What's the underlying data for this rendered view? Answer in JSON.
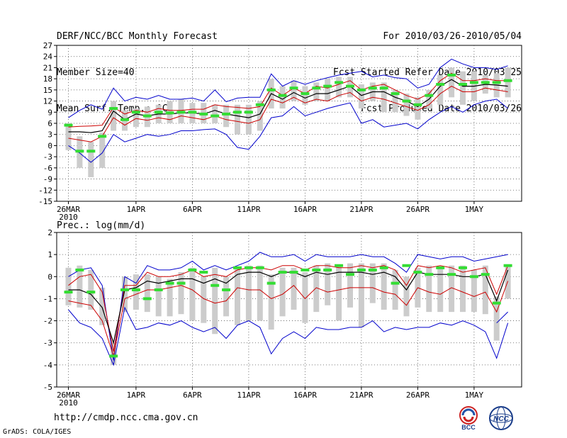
{
  "header": {
    "title": "DERF/NCC/BCC Monthly Forecast",
    "member_size": "Member Size=40",
    "variable": "Mean Surf. Temp.: °C",
    "period": "For 2010/03/26-2010/05/04",
    "refer_date": "Fcst Started Refer Date 2010/03/25",
    "produced_date": "Fcst Produced Date 2010/03/26"
  },
  "footer": {
    "url": "http://cmdp.ncc.cma.gov.cn",
    "credit": "GrADS: COLA/IGES",
    "logo_bcc": "BCC",
    "logo_ncc": "NCC"
  },
  "colors": {
    "ensemble_max_min": "#0000cc",
    "ensemble_spread": "#cc0000",
    "ensemble_mean": "#000000",
    "box": "#cccccc",
    "observed": "#33dd33"
  },
  "chart_data": [
    {
      "type": "line",
      "name": "temperature",
      "ylabel": "",
      "ylim": [
        -15,
        27
      ],
      "yticks": [
        27,
        24,
        21,
        18,
        15,
        12,
        9,
        6,
        3,
        0,
        -3,
        -6,
        -9,
        -12,
        -15
      ],
      "x_start_day": 0,
      "x_end_day": 40,
      "xtick_labels": [
        {
          "day": 0,
          "label": "26MAR",
          "sub": "2010"
        },
        {
          "day": 6,
          "label": "1APR"
        },
        {
          "day": 11,
          "label": "6APR"
        },
        {
          "day": 16,
          "label": "11APR"
        },
        {
          "day": 21,
          "label": "16APR"
        },
        {
          "day": 26,
          "label": "21APR"
        },
        {
          "day": 31,
          "label": "26APR"
        },
        {
          "day": 36,
          "label": "1MAY"
        }
      ],
      "series": [
        {
          "name": "max",
          "values": [
            7.5,
            9.5,
            11,
            9.8,
            15.5,
            12,
            13,
            12.5,
            13.5,
            12.5,
            12.5,
            12.8,
            12,
            15,
            11.8,
            12.8,
            13,
            13,
            19.3,
            16,
            17.5,
            16.5,
            17.5,
            18.3,
            19,
            19.5,
            20,
            18.5,
            19,
            18.3,
            18,
            15.5,
            16.5,
            21,
            23.3,
            22,
            21,
            21,
            20.5,
            21.5
          ]
        },
        {
          "name": "upper",
          "values": [
            5,
            5.2,
            5.3,
            5.5,
            10.3,
            8.5,
            9.5,
            9,
            10,
            9.5,
            9.5,
            9.8,
            9.8,
            11,
            10.5,
            10.3,
            10,
            10.5,
            15.5,
            13.5,
            15.5,
            14,
            16,
            15.5,
            16.5,
            17.5,
            15,
            16,
            16.5,
            15,
            13.5,
            12.5,
            14,
            17.5,
            19.5,
            17.5,
            17.5,
            18,
            17.5,
            17.5
          ]
        },
        {
          "name": "mean",
          "values": [
            3.7,
            3.7,
            3.5,
            4,
            9.3,
            7,
            8.5,
            8,
            8.5,
            8.5,
            8.8,
            8.8,
            8.5,
            9.5,
            8.5,
            8,
            7.5,
            8.5,
            14,
            12.5,
            14.3,
            12.8,
            14,
            14,
            15,
            16,
            13.5,
            14.5,
            14.5,
            13,
            12,
            10.5,
            12.5,
            16,
            17.8,
            16,
            16,
            16.5,
            16.3,
            16
          ]
        },
        {
          "name": "lower",
          "values": [
            2,
            1.5,
            1,
            2.5,
            7.5,
            5.5,
            7.3,
            6.8,
            7.5,
            7,
            8,
            7.5,
            7,
            8,
            7,
            6.5,
            6,
            7,
            12.5,
            11.5,
            13,
            11.5,
            12.5,
            12,
            13.5,
            14.3,
            12,
            13,
            12.5,
            11.5,
            10.5,
            9.5,
            11,
            14,
            16,
            14.5,
            14.5,
            15.5,
            15,
            14.5
          ]
        },
        {
          "name": "min",
          "values": [
            0,
            -2,
            -4.5,
            -2,
            3,
            1,
            2,
            3,
            2.5,
            3,
            4,
            4,
            4.3,
            4.5,
            3,
            -0.5,
            -1,
            2.5,
            7.5,
            8,
            10.5,
            8,
            9,
            10,
            10.8,
            11.5,
            6,
            7,
            5,
            5.5,
            6,
            4.5,
            7,
            9,
            10.5,
            9,
            11,
            12,
            12.5,
            10
          ]
        }
      ],
      "boxes": [
        [
          -1.2,
          6
        ],
        [
          -6,
          2.5
        ],
        [
          -8.5,
          1
        ],
        [
          -6,
          3.5
        ],
        [
          4,
          12
        ],
        [
          4,
          9.5
        ],
        [
          5,
          10
        ],
        [
          5,
          10.5
        ],
        [
          6,
          11
        ],
        [
          6,
          12
        ],
        [
          6,
          12.5
        ],
        [
          6,
          11.5
        ],
        [
          6,
          11.5
        ],
        [
          6,
          11
        ],
        [
          5,
          11
        ],
        [
          3,
          11
        ],
        [
          3,
          11
        ],
        [
          4,
          12
        ],
        [
          10,
          18
        ],
        [
          10,
          16
        ],
        [
          12,
          17.5
        ],
        [
          11,
          16
        ],
        [
          12,
          17
        ],
        [
          12,
          18
        ],
        [
          13,
          18.5
        ],
        [
          13,
          18.5
        ],
        [
          10,
          16.5
        ],
        [
          12,
          17
        ],
        [
          9,
          17
        ],
        [
          9,
          15
        ],
        [
          8,
          14
        ],
        [
          7,
          13
        ],
        [
          10,
          15
        ],
        [
          11,
          19
        ],
        [
          13,
          21
        ],
        [
          11,
          20
        ],
        [
          12,
          20
        ],
        [
          14,
          19
        ],
        [
          13,
          19.5
        ],
        [
          13,
          21
        ]
      ],
      "observed": [
        5.5,
        -1.5,
        -1.5,
        2.5,
        10,
        7,
        9,
        8,
        9,
        8.8,
        9,
        9,
        8.5,
        8,
        8.5,
        9,
        9,
        11,
        15,
        13.5,
        15.5,
        14,
        15.5,
        16,
        17,
        16,
        15,
        15.5,
        15.5,
        14,
        12,
        11,
        13.5,
        16.5,
        19,
        16.5,
        17,
        17,
        17,
        17.5
      ]
    },
    {
      "type": "line",
      "name": "precipitation",
      "title": "Prec.: log(mm/d)",
      "ylim": [
        -5,
        2
      ],
      "yticks": [
        2,
        1,
        0,
        -1,
        -2,
        -3,
        -4,
        -5
      ],
      "x_start_day": 0,
      "x_end_day": 40,
      "xtick_labels": [
        {
          "day": 0,
          "label": "26MAR",
          "sub": "2010"
        },
        {
          "day": 6,
          "label": "1APR"
        },
        {
          "day": 11,
          "label": "6APR"
        },
        {
          "day": 16,
          "label": "11APR"
        },
        {
          "day": 21,
          "label": "16APR"
        },
        {
          "day": 26,
          "label": "21APR"
        },
        {
          "day": 31,
          "label": "26APR"
        },
        {
          "day": 36,
          "label": "1MAY"
        }
      ],
      "series": [
        {
          "name": "max",
          "values": [
            0,
            0.3,
            0.4,
            -0.4,
            -3.8,
            0,
            -0.3,
            0.5,
            0.3,
            0.3,
            0.4,
            0.7,
            0.3,
            0.5,
            0.3,
            0.5,
            0.7,
            1.1,
            0.9,
            0.9,
            1,
            0.7,
            1,
            0.9,
            0.9,
            0.9,
            1,
            0.9,
            0.9,
            0.6,
            0.2,
            1,
            0.9,
            0.8,
            0.9,
            0.9,
            0.7,
            0.8,
            0.9,
            1
          ]
        },
        {
          "name": "upper",
          "values": [
            -0.4,
            0,
            0.1,
            -0.7,
            -3.4,
            -0.4,
            -0.4,
            0.2,
            0,
            0,
            0.1,
            0.3,
            0,
            0.1,
            0,
            0.3,
            0.4,
            0.4,
            0.3,
            0.5,
            0.5,
            0.3,
            0.5,
            0.5,
            0.4,
            0.4,
            0.5,
            0.4,
            0.5,
            0.3,
            -0.4,
            0.5,
            0.4,
            0.5,
            0.4,
            0.2,
            0.3,
            0.4,
            -0.8,
            0.5
          ]
        },
        {
          "name": "mean",
          "values": [
            -0.6,
            -0.6,
            -0.8,
            -1.4,
            -3,
            -0.6,
            -0.5,
            -0.2,
            -0.3,
            -0.2,
            -0.1,
            -0.1,
            -0.3,
            -0.1,
            -0.3,
            0.1,
            0.2,
            0.2,
            0,
            0.2,
            0.2,
            0,
            0.2,
            0.1,
            0.2,
            0.2,
            0.2,
            0.1,
            0.2,
            0,
            -0.6,
            0.2,
            0.1,
            0.1,
            0.1,
            0,
            0,
            0.1,
            -1.1,
            0.3
          ]
        },
        {
          "name": "lower",
          "values": [
            -1.1,
            -1.2,
            -1.3,
            -2,
            -3.6,
            -1,
            -0.8,
            -0.6,
            -0.6,
            -0.5,
            -0.4,
            -0.6,
            -1,
            -1.2,
            -1.1,
            -0.5,
            -0.6,
            -0.6,
            -1,
            -0.8,
            -0.4,
            -1,
            -0.5,
            -0.7,
            -0.6,
            -0.5,
            -0.5,
            -0.5,
            -0.7,
            -0.8,
            -1.3,
            -0.5,
            -0.7,
            -0.8,
            -0.5,
            -0.7,
            -0.9,
            -0.7,
            -1.6,
            -0.2
          ]
        },
        {
          "name": "min",
          "values": [
            -1.5,
            -2.1,
            -2.3,
            -2.8,
            -4,
            -1.4,
            -2.4,
            -2.3,
            -2.1,
            -2.2,
            -2,
            -2.3,
            -2.5,
            -2.3,
            -2.8,
            -2.2,
            -2,
            -2.3,
            -3.5,
            -2.8,
            -2.5,
            -2.8,
            -2.3,
            -2.4,
            -2.4,
            -2.3,
            -2.3,
            -2,
            -2.5,
            -2.3,
            -2.4,
            -2.3,
            -2.3,
            -2.1,
            -2.2,
            -2,
            -2.2,
            -2.5,
            -3.7,
            -2.1
          ]
        },
        {
          "name": "end_min",
          "values": [
            null,
            null,
            null,
            null,
            null,
            null,
            null,
            null,
            null,
            null,
            null,
            null,
            null,
            null,
            null,
            null,
            null,
            null,
            null,
            null,
            null,
            null,
            null,
            null,
            null,
            null,
            null,
            null,
            null,
            null,
            null,
            null,
            null,
            null,
            null,
            null,
            null,
            null,
            -2.1,
            -1.6
          ]
        }
      ],
      "boxes": [
        [
          -1.3,
          0.4
        ],
        [
          -1.4,
          0.5
        ],
        [
          -1.5,
          0.3
        ],
        [
          -2.2,
          -0.5
        ],
        [
          -4,
          -3
        ],
        [
          -1.6,
          0
        ],
        [
          -1.5,
          0.1
        ],
        [
          -1.6,
          0.1
        ],
        [
          -1.8,
          0
        ],
        [
          -1.8,
          -0.1
        ],
        [
          -1.7,
          0.2
        ],
        [
          -2,
          0.4
        ],
        [
          -2.1,
          0
        ],
        [
          -2.6,
          0.4
        ],
        [
          -1.8,
          0
        ],
        [
          -2.2,
          0.4
        ],
        [
          -2,
          0.5
        ],
        [
          -2,
          0.5
        ],
        [
          -2.4,
          0.1
        ],
        [
          -1.8,
          0.4
        ],
        [
          -1.5,
          0.4
        ],
        [
          -2.1,
          0.2
        ],
        [
          -1.6,
          0.5
        ],
        [
          -1.3,
          0.6
        ],
        [
          -2,
          0.5
        ],
        [
          -1.4,
          0.6
        ],
        [
          -2.3,
          0.6
        ],
        [
          -1.2,
          0.6
        ],
        [
          -1.5,
          0.6
        ],
        [
          -1.5,
          0.3
        ],
        [
          -1.8,
          0
        ],
        [
          -1.4,
          0.4
        ],
        [
          -1.6,
          0.5
        ],
        [
          -1.6,
          0.4
        ],
        [
          -1.6,
          0.5
        ],
        [
          -1.6,
          0.5
        ],
        [
          -1.6,
          0.3
        ],
        [
          -1.7,
          0.5
        ],
        [
          -2.9,
          -0.9
        ],
        [
          -1,
          0.5
        ]
      ],
      "observed": [
        -0.7,
        0.3,
        -0.7,
        null,
        -3.6,
        -0.6,
        -0.6,
        -1,
        -0.6,
        -0.3,
        -0.3,
        0.3,
        0.2,
        -0.4,
        -0.6,
        0.4,
        0.4,
        0.4,
        -0.3,
        0.2,
        0.2,
        0.3,
        0.3,
        0.3,
        0.5,
        0.1,
        0.3,
        0.3,
        0.4,
        -0.3,
        0.5,
        0.2,
        0.1,
        0.4,
        0.1,
        0.4,
        0,
        0.1,
        -1.2,
        0.5
      ]
    }
  ]
}
